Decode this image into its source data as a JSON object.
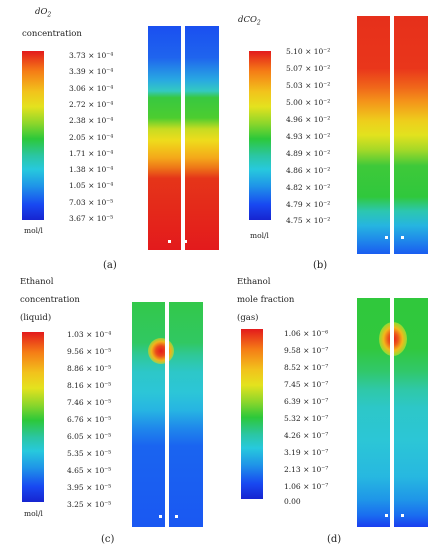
{
  "panels": [
    {
      "label": "(a)",
      "title_html": "dO<sub>2</sub>",
      "title2": "concentration",
      "unit": "mol/l",
      "ticks": [
        "3.73 × 10⁻⁴",
        "3.39 × 10⁻⁴",
        "3.06 × 10⁻⁴",
        "2.72 × 10⁻⁴",
        "2.38 × 10⁻⁴",
        "2.05 × 10⁻⁴",
        "1.71 × 10⁻⁴",
        "1.38 × 10⁻⁴",
        "1.05 × 10⁻⁴",
        "7.03 × 10⁻⁵",
        "3.67 × 10⁻⁵"
      ]
    },
    {
      "label": "(b)",
      "title_html": "dCO<sub>2</sub>",
      "title2": "",
      "unit": "mol/l",
      "ticks": [
        "5.10 × 10⁻²",
        "5.07 × 10⁻²",
        "5.03 × 10⁻²",
        "5.00 × 10⁻²",
        "4.96 × 10⁻²",
        "4.93 × 10⁻²",
        "4.89 × 10⁻²",
        "4.86 × 10⁻²",
        "4.82 × 10⁻²",
        "4.79 × 10⁻²",
        "4.75 × 10⁻²"
      ]
    },
    {
      "label": "(c)",
      "title_lines": [
        "Ethanol",
        "concentration",
        "(liquid)"
      ],
      "unit": "mol/l",
      "ticks": [
        "1.03 × 10⁻⁴",
        "9.56 × 10⁻⁵",
        "8.86 × 10⁻⁵",
        "8.16 × 10⁻⁵",
        "7.46 × 10⁻⁵",
        "6.76 × 10⁻⁵",
        "6.05 × 10⁻⁵",
        "5.35 × 10⁻⁵",
        "4.65 × 10⁻⁵",
        "3.95 × 10⁻⁵",
        "3.25 × 10⁻⁵"
      ]
    },
    {
      "label": "(d)",
      "title_lines": [
        "Ethanol",
        "mole fraction",
        "(gas)"
      ],
      "unit": "",
      "ticks": [
        "1.06 × 10⁻⁶",
        "9.58 × 10⁻⁷",
        "8.52 × 10⁻⁷",
        "7.45 × 10⁻⁷",
        "6.39 × 10⁻⁷",
        "5.32 × 10⁻⁷",
        "4.26 × 10⁻⁷",
        "3.19 × 10⁻⁷",
        "2.13 × 10⁻⁷",
        "1.06 × 10⁻⁷",
        "0.00"
      ]
    }
  ],
  "colors": {
    "colormap": "jet",
    "red": "#e8261e",
    "orange": "#f39a1a",
    "yellow": "#e6e21c",
    "green": "#30c83c",
    "cyan": "#2fc8d8",
    "blue": "#1a5cf0",
    "dark_blue": "#1a1ad8"
  }
}
